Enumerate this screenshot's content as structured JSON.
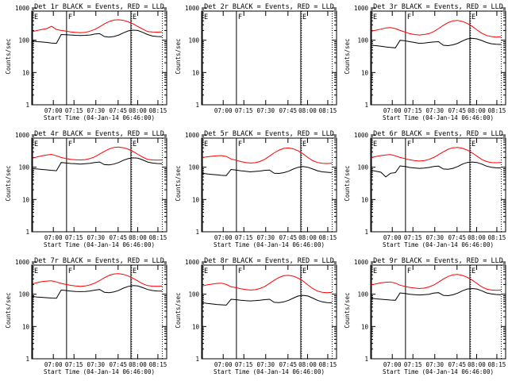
{
  "chart_data": [
    {
      "type": "line",
      "title": "Det 1r BLACK = Events, RED = LLD",
      "xlabel": "Start Time (04-Jan-14 06:46:00)",
      "ylabel": "Counts/sec",
      "yscale": "log",
      "ylim": [
        1,
        1000
      ],
      "x_ticks": [
        "07:00",
        "07:15",
        "07:30",
        "07:45",
        "08:00",
        "08:15"
      ],
      "y_ticks": [
        "1",
        "10",
        "100",
        "1000"
      ],
      "markers": [
        "E",
        "F",
        "E"
      ],
      "series": [
        {
          "color": "#ff0000",
          "values": [
            185,
            200,
            215,
            230,
            270,
            215,
            200,
            190,
            180,
            175,
            170,
            175,
            190,
            215,
            260,
            320,
            380,
            420,
            430,
            410,
            370,
            320,
            265,
            220,
            185,
            180,
            178,
            180
          ]
        },
        {
          "color": "#000000",
          "values": [
            95,
            90,
            88,
            85,
            82,
            80,
            150,
            148,
            145,
            142,
            140,
            142,
            145,
            155,
            160,
            130,
            125,
            130,
            145,
            170,
            195,
            205,
            200,
            175,
            150,
            135,
            130,
            128
          ]
        }
      ]
    },
    {
      "type": "line",
      "title": "Det 2r BLACK = Events, RED = LLD",
      "xlabel": "",
      "ylabel": "Counts/sec",
      "yscale": "log",
      "ylim": [
        1,
        1000
      ],
      "x_ticks": [
        "07:00",
        "07:15",
        "07:30",
        "07:45",
        "08:00",
        "08:15"
      ],
      "y_ticks": [
        "1",
        "10",
        "100",
        "1000"
      ],
      "markers": [
        "E",
        "F",
        "E"
      ],
      "series": []
    },
    {
      "type": "line",
      "title": "Det 3r BLACK = Events, RED = LLD",
      "xlabel": "Start Time (04-Jan-14 06:46:00)",
      "ylabel": "Counts/sec",
      "yscale": "log",
      "ylim": [
        1,
        1000
      ],
      "x_ticks": [
        "07:00",
        "07:15",
        "07:30",
        "07:45",
        "08:00",
        "08:15"
      ],
      "y_ticks": [
        "1",
        "10",
        "100",
        "1000"
      ],
      "markers": [
        "E",
        "F",
        "E"
      ],
      "series": [
        {
          "color": "#ff0000",
          "values": [
            190,
            205,
            220,
            240,
            245,
            230,
            200,
            180,
            160,
            150,
            145,
            150,
            160,
            185,
            230,
            290,
            350,
            400,
            410,
            380,
            330,
            270,
            210,
            165,
            140,
            130,
            125,
            128
          ]
        },
        {
          "color": "#000000",
          "values": [
            70,
            68,
            65,
            62,
            60,
            58,
            100,
            96,
            90,
            85,
            80,
            82,
            85,
            88,
            90,
            70,
            68,
            72,
            80,
            95,
            110,
            115,
            110,
            98,
            85,
            78,
            75,
            74
          ]
        }
      ]
    },
    {
      "type": "line",
      "title": "Det 4r BLACK = Events, RED = LLD",
      "xlabel": "Start Time (04-Jan-14 06:46:00)",
      "ylabel": "Counts/sec",
      "yscale": "log",
      "ylim": [
        1,
        1000
      ],
      "x_ticks": [
        "07:00",
        "07:15",
        "07:30",
        "07:45",
        "08:00",
        "08:15"
      ],
      "y_ticks": [
        "1",
        "10",
        "100",
        "1000"
      ],
      "markers": [
        "E",
        "F",
        "E"
      ],
      "series": [
        {
          "color": "#ff0000",
          "values": [
            190,
            210,
            225,
            240,
            250,
            225,
            200,
            185,
            175,
            170,
            168,
            172,
            185,
            210,
            255,
            310,
            370,
            410,
            420,
            400,
            360,
            305,
            250,
            205,
            175,
            168,
            165,
            168
          ]
        },
        {
          "color": "#000000",
          "values": [
            90,
            88,
            85,
            83,
            80,
            78,
            140,
            135,
            130,
            128,
            125,
            128,
            132,
            140,
            145,
            120,
            118,
            125,
            140,
            165,
            185,
            195,
            190,
            168,
            145,
            135,
            130,
            128
          ]
        }
      ]
    },
    {
      "type": "line",
      "title": "Det 5r BLACK = Events, RED = LLD",
      "xlabel": "Start Time (04-Jan-14 06:46:00)",
      "ylabel": "Counts/sec",
      "yscale": "log",
      "ylim": [
        1,
        1000
      ],
      "x_ticks": [
        "07:00",
        "07:15",
        "07:30",
        "07:45",
        "08:00",
        "08:15"
      ],
      "y_ticks": [
        "1",
        "10",
        "100",
        "1000"
      ],
      "markers": [
        "E",
        "F",
        "E"
      ],
      "series": [
        {
          "color": "#ff0000",
          "values": [
            200,
            210,
            218,
            225,
            230,
            215,
            180,
            165,
            150,
            140,
            135,
            138,
            150,
            175,
            220,
            280,
            340,
            385,
            395,
            370,
            320,
            260,
            200,
            160,
            140,
            132,
            130,
            132
          ]
        },
        {
          "color": "#000000",
          "values": [
            65,
            62,
            60,
            58,
            56,
            55,
            85,
            82,
            78,
            75,
            72,
            74,
            76,
            80,
            82,
            65,
            64,
            68,
            75,
            88,
            100,
            105,
            100,
            88,
            78,
            72,
            70,
            68
          ]
        }
      ]
    },
    {
      "type": "line",
      "title": "Det 6r BLACK = Events, RED = LLD",
      "xlabel": "Start Time (04-Jan-14 06:46:00)",
      "ylabel": "Counts/sec",
      "yscale": "log",
      "ylim": [
        1,
        1000
      ],
      "x_ticks": [
        "07:00",
        "07:15",
        "07:30",
        "07:45",
        "08:00",
        "08:15"
      ],
      "y_ticks": [
        "1",
        "10",
        "100",
        "1000"
      ],
      "markers": [
        "E",
        "F",
        "E"
      ],
      "series": [
        {
          "color": "#ff0000",
          "values": [
            200,
            215,
            230,
            240,
            245,
            225,
            200,
            185,
            170,
            160,
            155,
            160,
            175,
            200,
            245,
            300,
            360,
            400,
            410,
            385,
            340,
            280,
            220,
            175,
            150,
            140,
            138,
            140
          ]
        },
        {
          "color": "#000000",
          "values": [
            80,
            75,
            70,
            50,
            65,
            68,
            110,
            105,
            98,
            95,
            92,
            94,
            98,
            105,
            108,
            88,
            86,
            92,
            105,
            125,
            140,
            145,
            140,
            125,
            108,
            100,
            96,
            95
          ]
        }
      ]
    },
    {
      "type": "line",
      "title": "Det 7r BLACK = Events, RED = LLD",
      "xlabel": "Start Time (04-Jan-14 06:46:00)",
      "ylabel": "Counts/sec",
      "yscale": "log",
      "ylim": [
        1,
        1000
      ],
      "x_ticks": [
        "07:00",
        "07:15",
        "07:30",
        "07:45",
        "08:00",
        "08:15"
      ],
      "y_ticks": [
        "1",
        "10",
        "100",
        "1000"
      ],
      "markers": [
        "E",
        "F",
        "E"
      ],
      "series": [
        {
          "color": "#ff0000",
          "values": [
            210,
            230,
            245,
            255,
            260,
            240,
            215,
            200,
            188,
            180,
            175,
            180,
            195,
            220,
            265,
            325,
            385,
            425,
            435,
            410,
            365,
            310,
            255,
            210,
            185,
            178,
            175,
            178
          ]
        },
        {
          "color": "#000000",
          "values": [
            85,
            82,
            80,
            78,
            76,
            75,
            135,
            130,
            125,
            122,
            120,
            122,
            126,
            134,
            140,
            115,
            112,
            118,
            132,
            155,
            175,
            185,
            180,
            160,
            140,
            130,
            126,
            125
          ]
        }
      ]
    },
    {
      "type": "line",
      "title": "Det 8r BLACK = Events, RED = LLD",
      "xlabel": "Start Time (04-Jan-14 06:46:00)",
      "ylabel": "Counts/sec",
      "yscale": "log",
      "ylim": [
        1,
        1000
      ],
      "x_ticks": [
        "07:00",
        "07:15",
        "07:30",
        "07:45",
        "08:00",
        "08:15"
      ],
      "y_ticks": [
        "1",
        "10",
        "100",
        "1000"
      ],
      "markers": [
        "E",
        "F",
        "E"
      ],
      "series": [
        {
          "color": "#ff0000",
          "values": [
            180,
            195,
            205,
            215,
            220,
            200,
            170,
            160,
            148,
            140,
            135,
            138,
            150,
            172,
            215,
            270,
            330,
            375,
            385,
            360,
            315,
            255,
            195,
            150,
            125,
            115,
            112,
            114
          ]
        },
        {
          "color": "#000000",
          "values": [
            55,
            52,
            50,
            48,
            47,
            46,
            70,
            68,
            65,
            63,
            62,
            63,
            65,
            68,
            70,
            56,
            55,
            58,
            65,
            76,
            88,
            92,
            88,
            76,
            65,
            58,
            55,
            54
          ]
        }
      ]
    },
    {
      "type": "line",
      "title": "Det 9r BLACK = Events, RED = LLD",
      "xlabel": "Start Time (04-Jan-14 06:46:00)",
      "ylabel": "Counts/sec",
      "yscale": "log",
      "ylim": [
        1,
        1000
      ],
      "x_ticks": [
        "07:00",
        "07:15",
        "07:30",
        "07:45",
        "08:00",
        "08:15"
      ],
      "y_ticks": [
        "1",
        "10",
        "100",
        "1000"
      ],
      "markers": [
        "E",
        "F",
        "E"
      ],
      "series": [
        {
          "color": "#ff0000",
          "values": [
            195,
            210,
            225,
            235,
            240,
            220,
            190,
            175,
            162,
            155,
            150,
            154,
            168,
            192,
            238,
            295,
            355,
            398,
            408,
            382,
            335,
            275,
            215,
            170,
            145,
            135,
            132,
            134
          ]
        },
        {
          "color": "#000000",
          "values": [
            75,
            72,
            70,
            68,
            66,
            65,
            110,
            105,
            100,
            97,
            95,
            97,
            100,
            108,
            112,
            92,
            90,
            96,
            108,
            128,
            145,
            150,
            145,
            128,
            110,
            102,
            98,
            96
          ]
        }
      ]
    }
  ]
}
